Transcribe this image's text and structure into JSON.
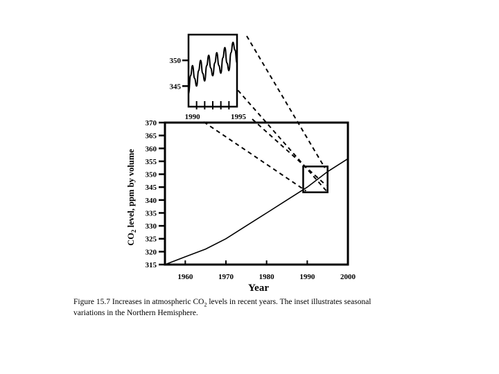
{
  "chart_data": [
    {
      "type": "line",
      "xlabel": "Year",
      "ylabel_prefix": "CO",
      "ylabel_sub": "2",
      "ylabel_rest": " level, ppm by volume",
      "xlim": [
        1955,
        2000
      ],
      "ylim": [
        315,
        370
      ],
      "x_ticks": [
        "1960",
        "1970",
        "1980",
        "1990",
        "2000"
      ],
      "y_ticks": [
        "315",
        "320",
        "325",
        "330",
        "335",
        "340",
        "345",
        "350",
        "355",
        "360",
        "365",
        "370"
      ],
      "series": [
        {
          "x": [
            1955,
            1960,
            1965,
            1970,
            1975,
            1980,
            1985,
            1990,
            1995,
            2000
          ],
          "values": [
            315,
            318,
            321,
            325,
            330,
            335,
            340,
            345,
            351,
            356
          ]
        }
      ],
      "zoom_box": {
        "x": [
          1989,
          1995
        ],
        "y": [
          343,
          353
        ]
      }
    },
    {
      "type": "line",
      "xlim": [
        1989,
        1995
      ],
      "ylim": [
        341,
        355
      ],
      "x_tick_labels": [
        "1990",
        "1995"
      ],
      "y_ticks": [
        "345",
        "350"
      ],
      "series": [
        {
          "x": [
            1989.0,
            1989.25,
            1989.5,
            1989.75,
            1990.0,
            1990.25,
            1990.5,
            1990.75,
            1991.0,
            1991.25,
            1991.5,
            1991.75,
            1992.0,
            1992.25,
            1992.5,
            1992.75,
            1993.0,
            1993.25,
            1993.5,
            1993.75,
            1994.0,
            1994.25,
            1994.5,
            1994.75,
            1995.0
          ],
          "values": [
            343.5,
            347.0,
            349.0,
            346.5,
            345.0,
            348.0,
            350.0,
            347.5,
            346.0,
            349.0,
            351.0,
            348.5,
            347.0,
            349.5,
            351.5,
            349.0,
            347.5,
            350.5,
            352.5,
            349.5,
            348.0,
            351.5,
            353.5,
            352.0,
            349.5
          ]
        }
      ]
    }
  ],
  "caption": {
    "line1": "Figure 15.7  Increases in atmospheric CO",
    "line1_sub": "2",
    "line1_rest": " levels in recent years. The inset illustrates seasonal",
    "line2": "variations in the Northern Hemisphere."
  }
}
